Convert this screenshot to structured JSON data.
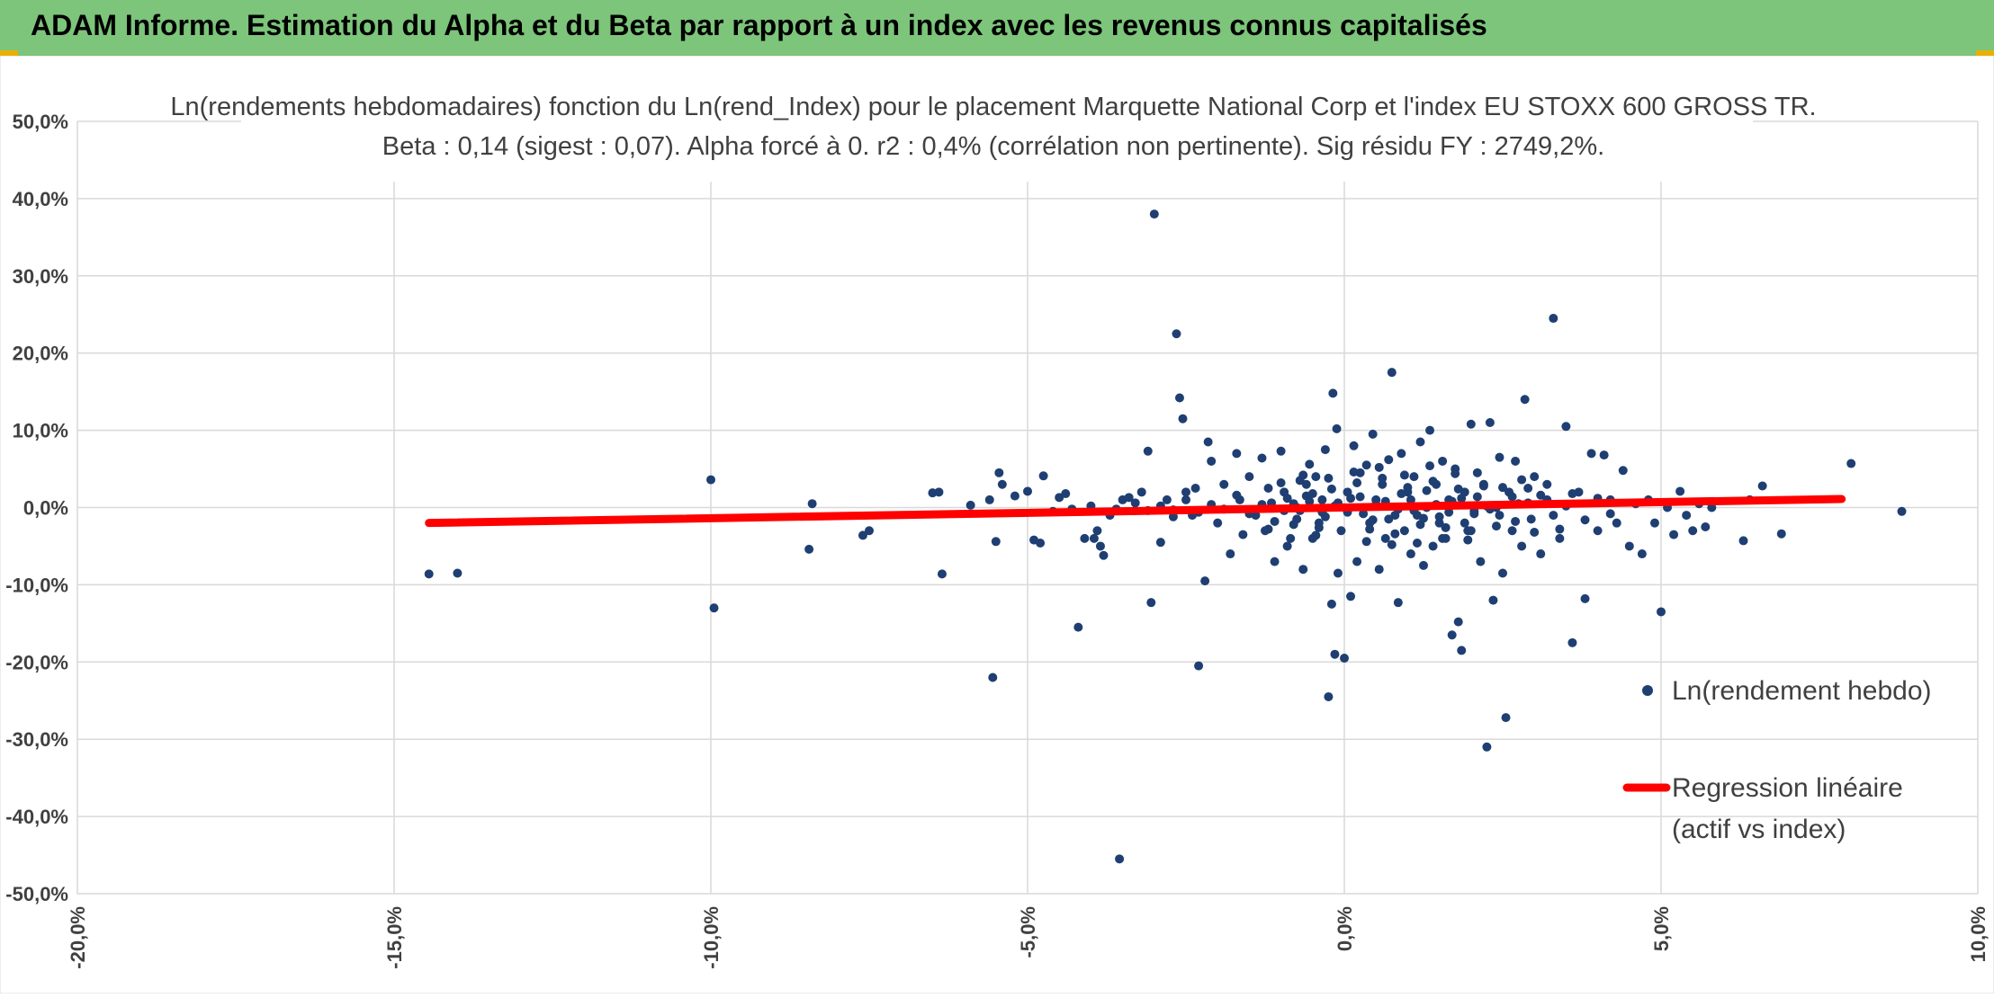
{
  "banner": {
    "title": "ADAM Informe. Estimation du Alpha et du Beta par rapport à un index avec les revenus connus capitalisés"
  },
  "colors": {
    "banner": "#7cc57a",
    "points": "#1f3f73",
    "regression": "#ff0000",
    "grid": "#d9d9d9"
  },
  "chart_data": {
    "type": "scatter",
    "title": "Ln(rendements hebdomadaires) fonction du Ln(rend_Index) pour le placement Marquette National Corp et l'index EU STOXX 600 GROSS TR.",
    "subtitle": "Beta : 0,14 (sigest : 0,07). Alpha forcé à 0. r2 : 0,4% (corrélation non pertinente). Sig résidu FY : 2749,2%.",
    "xlim": [
      -0.2,
      0.1
    ],
    "ylim": [
      -0.5,
      0.5
    ],
    "x_ticks": [
      "-20,0%",
      "-15,0%",
      "-10,0%",
      "-5,0%",
      "0,0%",
      "5,0%",
      "10,0%"
    ],
    "y_ticks": [
      "50,0%",
      "40,0%",
      "30,0%",
      "20,0%",
      "10,0%",
      "0,0%",
      "-10,0%",
      "-20,0%",
      "-30,0%",
      "-40,0%",
      "-50,0%"
    ],
    "grid": true,
    "legend_position": "right",
    "series": [
      {
        "name": "Ln(rendement hebdo)",
        "type": "scatter",
        "points": [
          [
            -0.1445,
            -0.086
          ],
          [
            -0.14,
            -0.085
          ],
          [
            -0.1,
            0.036
          ],
          [
            -0.0995,
            -0.13
          ],
          [
            -0.084,
            0.005
          ],
          [
            -0.0845,
            -0.054
          ],
          [
            -0.076,
            -0.036
          ],
          [
            -0.075,
            -0.03
          ],
          [
            -0.065,
            0.019
          ],
          [
            -0.064,
            0.02
          ],
          [
            -0.0635,
            -0.086
          ],
          [
            -0.059,
            0.003
          ],
          [
            -0.056,
            0.01
          ],
          [
            -0.055,
            -0.044
          ],
          [
            -0.0545,
            0.045
          ],
          [
            -0.0555,
            -0.22
          ],
          [
            -0.054,
            0.03
          ],
          [
            -0.052,
            0.015
          ],
          [
            -0.05,
            0.021
          ],
          [
            -0.049,
            -0.042
          ],
          [
            -0.048,
            -0.046
          ],
          [
            -0.0475,
            0.041
          ],
          [
            -0.046,
            -0.005
          ],
          [
            -0.045,
            0.013
          ],
          [
            -0.044,
            0.018
          ],
          [
            -0.043,
            -0.002
          ],
          [
            -0.042,
            -0.155
          ],
          [
            -0.041,
            -0.04
          ],
          [
            -0.04,
            0.002
          ],
          [
            -0.0395,
            -0.04
          ],
          [
            -0.039,
            -0.03
          ],
          [
            -0.0385,
            -0.05
          ],
          [
            -0.038,
            -0.062
          ],
          [
            -0.037,
            -0.01
          ],
          [
            -0.0355,
            -0.455
          ],
          [
            -0.035,
            0.01
          ],
          [
            -0.034,
            0.013
          ],
          [
            -0.033,
            -0.004
          ],
          [
            -0.032,
            0.02
          ],
          [
            -0.031,
            0.073
          ],
          [
            -0.0305,
            -0.123
          ],
          [
            -0.03,
            0.38
          ],
          [
            -0.029,
            -0.045
          ],
          [
            -0.028,
            0.01
          ],
          [
            -0.027,
            -0.003
          ],
          [
            -0.0265,
            0.225
          ],
          [
            -0.026,
            0.142
          ],
          [
            -0.0255,
            0.115
          ],
          [
            -0.025,
            0.02
          ],
          [
            -0.024,
            -0.01
          ],
          [
            -0.0235,
            0.025
          ],
          [
            -0.023,
            -0.205
          ],
          [
            -0.022,
            -0.095
          ],
          [
            -0.0215,
            0.085
          ],
          [
            -0.021,
            0.06
          ],
          [
            -0.02,
            -0.02
          ],
          [
            -0.019,
            0.03
          ],
          [
            -0.018,
            -0.06
          ],
          [
            -0.017,
            0.07
          ],
          [
            -0.0165,
            0.01
          ],
          [
            -0.016,
            -0.035
          ],
          [
            -0.015,
            0.04
          ],
          [
            -0.014,
            -0.01
          ],
          [
            -0.013,
            0.064
          ],
          [
            -0.0125,
            -0.03
          ],
          [
            -0.012,
            0.025
          ],
          [
            -0.011,
            -0.07
          ],
          [
            -0.01,
            0.073
          ],
          [
            -0.0095,
            0.02
          ],
          [
            -0.009,
            -0.05
          ],
          [
            -0.008,
            0.005
          ],
          [
            -0.0075,
            -0.015
          ],
          [
            -0.007,
            0.035
          ],
          [
            -0.0065,
            -0.08
          ],
          [
            -0.006,
            0.015
          ],
          [
            -0.0055,
            0.056
          ],
          [
            -0.005,
            -0.04
          ],
          [
            -0.0045,
            0.04
          ],
          [
            -0.004,
            -0.02
          ],
          [
            -0.0035,
            0.01
          ],
          [
            -0.003,
            0.075
          ],
          [
            -0.0025,
            -0.245
          ],
          [
            -0.002,
            -0.125
          ],
          [
            -0.0018,
            0.148
          ],
          [
            -0.0015,
            -0.19
          ],
          [
            -0.0012,
            0.102
          ],
          [
            -0.001,
            -0.085
          ],
          [
            -0.0005,
            -0.03
          ],
          [
            0.0,
            -0.195
          ],
          [
            0.0005,
            0.02
          ],
          [
            0.001,
            -0.115
          ],
          [
            0.0015,
            0.08
          ],
          [
            0.002,
            -0.07
          ],
          [
            0.0025,
            0.045
          ],
          [
            0.003,
            0.0
          ],
          [
            0.0035,
            0.055
          ],
          [
            0.004,
            -0.02
          ],
          [
            0.0045,
            0.095
          ],
          [
            0.005,
            0.01
          ],
          [
            0.0055,
            -0.08
          ],
          [
            0.006,
            0.03
          ],
          [
            0.0065,
            -0.04
          ],
          [
            0.007,
            0.062
          ],
          [
            0.0075,
            0.175
          ],
          [
            0.008,
            -0.01
          ],
          [
            0.0085,
            -0.123
          ],
          [
            0.009,
            0.07
          ],
          [
            0.0095,
            -0.03
          ],
          [
            0.01,
            0.02
          ],
          [
            0.0105,
            -0.06
          ],
          [
            0.011,
            0.04
          ],
          [
            0.0115,
            -0.01
          ],
          [
            0.012,
            0.085
          ],
          [
            0.0125,
            -0.075
          ],
          [
            0.013,
            0.0
          ],
          [
            0.0135,
            0.1
          ],
          [
            0.014,
            -0.05
          ],
          [
            0.0145,
            0.03
          ],
          [
            0.015,
            -0.02
          ],
          [
            0.0155,
            0.06
          ],
          [
            0.016,
            -0.04
          ],
          [
            0.0165,
            0.01
          ],
          [
            0.017,
            -0.165
          ],
          [
            0.0175,
            0.05
          ],
          [
            0.018,
            -0.148
          ],
          [
            0.0185,
            -0.185
          ],
          [
            0.019,
            0.02
          ],
          [
            0.0195,
            -0.03
          ],
          [
            0.02,
            0.108
          ],
          [
            0.0205,
            -0.005
          ],
          [
            0.021,
            0.045
          ],
          [
            0.0215,
            -0.07
          ],
          [
            0.022,
            0.03
          ],
          [
            0.0225,
            -0.31
          ],
          [
            0.023,
            0.11
          ],
          [
            0.0235,
            -0.12
          ],
          [
            0.024,
            0.0
          ],
          [
            0.0245,
            0.065
          ],
          [
            0.025,
            -0.085
          ],
          [
            0.0255,
            -0.272
          ],
          [
            0.026,
            0.02
          ],
          [
            0.0265,
            -0.03
          ],
          [
            0.027,
            0.06
          ],
          [
            0.0275,
            0.005
          ],
          [
            0.028,
            -0.05
          ],
          [
            0.0285,
            0.14
          ],
          [
            0.029,
            0.025
          ],
          [
            0.0295,
            -0.015
          ],
          [
            0.03,
            0.04
          ],
          [
            0.031,
            -0.06
          ],
          [
            0.032,
            0.01
          ],
          [
            0.033,
            0.245
          ],
          [
            0.034,
            -0.04
          ],
          [
            0.035,
            0.105
          ],
          [
            0.036,
            -0.175
          ],
          [
            0.037,
            0.02
          ],
          [
            0.038,
            -0.118
          ],
          [
            0.039,
            0.07
          ],
          [
            0.04,
            -0.03
          ],
          [
            0.041,
            0.068
          ],
          [
            0.042,
            0.01
          ],
          [
            0.043,
            -0.02
          ],
          [
            0.044,
            0.048
          ],
          [
            0.045,
            -0.05
          ],
          [
            0.046,
            0.005
          ],
          [
            0.047,
            -0.06
          ],
          [
            0.048,
            0.01
          ],
          [
            0.05,
            -0.135
          ],
          [
            0.049,
            -0.02
          ],
          [
            0.051,
            0.0
          ],
          [
            0.052,
            -0.035
          ],
          [
            0.053,
            0.021
          ],
          [
            0.054,
            -0.01
          ],
          [
            0.055,
            -0.03
          ],
          [
            0.056,
            0.005
          ],
          [
            0.057,
            -0.025
          ],
          [
            0.058,
            0.0
          ],
          [
            0.063,
            -0.043
          ],
          [
            0.064,
            0.01
          ],
          [
            0.066,
            0.028
          ],
          [
            0.069,
            -0.034
          ],
          [
            0.08,
            0.057
          ],
          [
            0.088,
            -0.005
          ],
          [
            0.001,
            0.012
          ],
          [
            0.003,
            -0.008
          ],
          [
            0.005,
            0.004
          ],
          [
            0.007,
            -0.015
          ],
          [
            0.009,
            0.018
          ],
          [
            0.011,
            -0.004
          ],
          [
            0.013,
            0.022
          ],
          [
            0.015,
            -0.012
          ],
          [
            0.017,
            0.008
          ],
          [
            0.019,
            -0.02
          ],
          [
            0.021,
            0.014
          ],
          [
            0.023,
            -0.002
          ],
          [
            0.025,
            0.026
          ],
          [
            0.027,
            -0.018
          ],
          [
            0.029,
            0.006
          ],
          [
            0.031,
            0.016
          ],
          [
            0.033,
            -0.01
          ],
          [
            0.035,
            0.002
          ],
          [
            -0.001,
            0.006
          ],
          [
            -0.003,
            -0.012
          ],
          [
            -0.005,
            0.018
          ],
          [
            -0.007,
            -0.004
          ],
          [
            -0.009,
            0.012
          ],
          [
            -0.011,
            -0.018
          ],
          [
            -0.013,
            0.004
          ],
          [
            -0.015,
            -0.008
          ],
          [
            -0.017,
            0.016
          ],
          [
            -0.019,
            -0.002
          ],
          [
            0.002,
            0.032
          ],
          [
            0.004,
            -0.028
          ],
          [
            0.006,
            0.038
          ],
          [
            0.008,
            -0.034
          ],
          [
            0.01,
            0.026
          ],
          [
            0.012,
            -0.022
          ],
          [
            0.014,
            0.034
          ],
          [
            0.016,
            -0.026
          ],
          [
            0.018,
            0.024
          ],
          [
            0.02,
            -0.03
          ],
          [
            0.022,
            0.028
          ],
          [
            0.024,
            -0.024
          ],
          [
            -0.002,
            0.024
          ],
          [
            -0.004,
            -0.026
          ],
          [
            -0.006,
            0.03
          ],
          [
            -0.008,
            -0.022
          ],
          [
            -0.01,
            0.032
          ],
          [
            -0.012,
            -0.028
          ],
          [
            0.0005,
            -0.006
          ],
          [
            0.0025,
            0.014
          ],
          [
            0.0045,
            -0.016
          ],
          [
            0.0065,
            0.008
          ],
          [
            0.0085,
            -0.002
          ],
          [
            0.0105,
            0.01
          ],
          [
            0.0125,
            -0.014
          ],
          [
            0.0145,
            0.004
          ],
          [
            0.0165,
            -0.006
          ],
          [
            0.0185,
            0.012
          ],
          [
            0.0205,
            -0.008
          ],
          [
            0.0225,
            0.002
          ],
          [
            0.0245,
            -0.01
          ],
          [
            0.0265,
            0.014
          ],
          [
            -0.0015,
            0.002
          ],
          [
            -0.0035,
            -0.006
          ],
          [
            -0.0055,
            0.008
          ],
          [
            -0.0075,
            0.0
          ],
          [
            -0.0095,
            -0.004
          ],
          [
            -0.0115,
            0.006
          ],
          [
            0.0015,
            0.046
          ],
          [
            0.0035,
            -0.044
          ],
          [
            0.0055,
            0.052
          ],
          [
            0.0075,
            -0.048
          ],
          [
            0.0095,
            0.042
          ],
          [
            0.0115,
            -0.046
          ],
          [
            0.0135,
            0.054
          ],
          [
            0.0155,
            -0.04
          ],
          [
            0.0175,
            0.044
          ],
          [
            0.0195,
            -0.042
          ],
          [
            -0.0025,
            0.038
          ],
          [
            -0.0045,
            -0.036
          ],
          [
            -0.0065,
            0.042
          ],
          [
            -0.0085,
            -0.04
          ],
          [
            0.028,
            0.036
          ],
          [
            0.03,
            -0.032
          ],
          [
            0.032,
            0.03
          ],
          [
            0.034,
            -0.028
          ],
          [
            0.036,
            0.018
          ],
          [
            0.038,
            -0.016
          ],
          [
            0.04,
            0.012
          ],
          [
            0.042,
            -0.008
          ],
          [
            -0.021,
            0.004
          ],
          [
            -0.023,
            -0.006
          ],
          [
            -0.025,
            0.01
          ],
          [
            -0.027,
            -0.012
          ],
          [
            -0.029,
            0.002
          ],
          [
            -0.031,
            -0.004
          ],
          [
            -0.033,
            0.006
          ],
          [
            -0.036,
            -0.002
          ]
        ]
      },
      {
        "name": "Regression linéaire (actif vs index)",
        "type": "line",
        "points": [
          [
            -0.1445,
            -0.02
          ],
          [
            0.0785,
            0.011
          ]
        ]
      }
    ],
    "legend": {
      "scatter_label": "Ln(rendement hebdo)",
      "line_label_1": "Regression linéaire",
      "line_label_2": "(actif vs index)"
    }
  }
}
